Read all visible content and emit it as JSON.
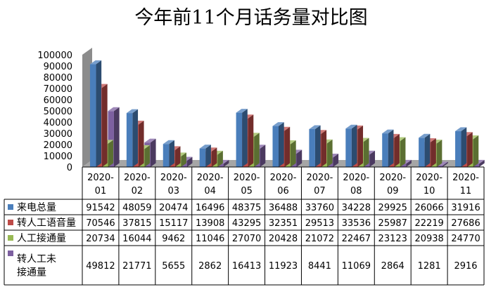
{
  "chart_data": {
    "type": "bar",
    "title": "今年前11个月话务量对比图",
    "categories": [
      [
        "2020-",
        "01"
      ],
      [
        "2020-",
        "02"
      ],
      [
        "2020-",
        "03"
      ],
      [
        "2020-",
        "04"
      ],
      [
        "2020-",
        "05"
      ],
      [
        "2020-",
        "06"
      ],
      [
        "2020-",
        "07"
      ],
      [
        "2020-",
        "08"
      ],
      [
        "2020-",
        "09"
      ],
      [
        "2020-",
        "10"
      ],
      [
        "2020-",
        "11"
      ]
    ],
    "yticks": [
      "0",
      "10000",
      "20000",
      "30000",
      "40000",
      "50000",
      "60000",
      "70000",
      "80000",
      "90000",
      "100000"
    ],
    "ylim": [
      0,
      100000
    ],
    "grid": false,
    "legend": "data-table",
    "series": [
      {
        "name": [
          "来电总量"
        ],
        "color": "#4A7EBB",
        "values": [
          91542,
          48059,
          20474,
          16496,
          48375,
          36488,
          33760,
          34228,
          29925,
          26066,
          31916
        ]
      },
      {
        "name": [
          "转人工语音量"
        ],
        "color": "#BE4B48",
        "values": [
          70546,
          37815,
          15117,
          13908,
          43295,
          32351,
          29513,
          33536,
          25987,
          22219,
          27686
        ]
      },
      {
        "name": [
          "人工接通量"
        ],
        "color": "#98B954",
        "values": [
          20734,
          16044,
          9462,
          11046,
          27070,
          20428,
          21072,
          22467,
          23123,
          20938,
          24770
        ]
      },
      {
        "name": [
          "转人工未",
          "接通量"
        ],
        "color": "#7D60A0",
        "values": [
          49812,
          21771,
          5655,
          2862,
          16413,
          11923,
          8441,
          11069,
          2864,
          1281,
          2916
        ]
      }
    ]
  }
}
